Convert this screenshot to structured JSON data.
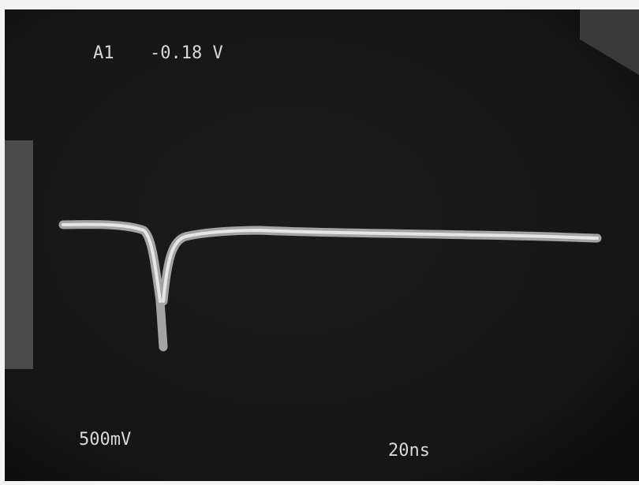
{
  "readout": {
    "channel": "A1",
    "value": "-0.18 V"
  },
  "scale": {
    "vertical": "500mV",
    "horizontal": "20ns"
  }
}
